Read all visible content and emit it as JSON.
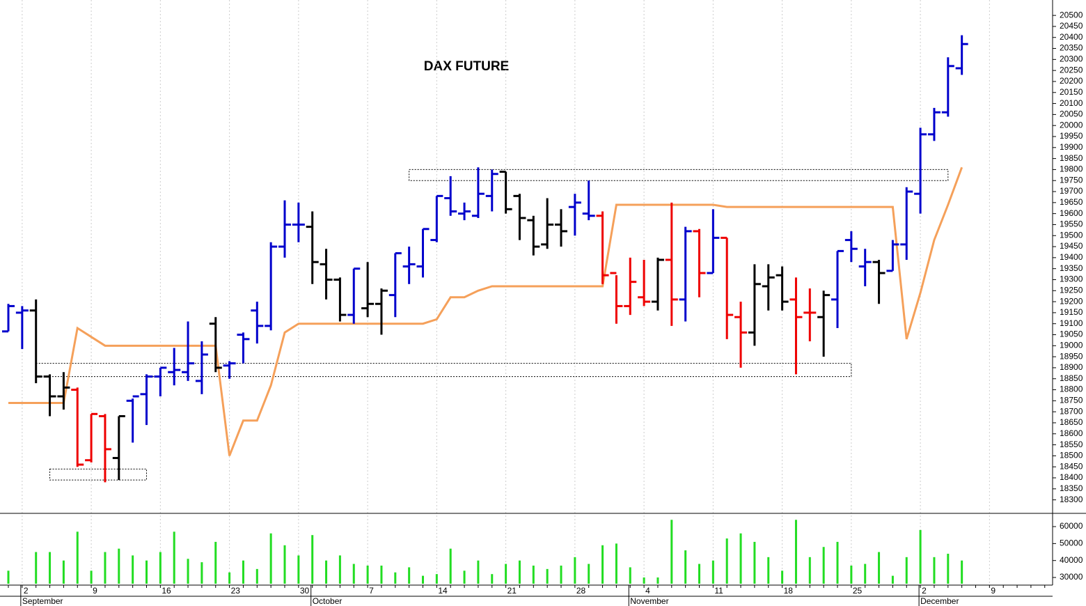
{
  "chart_data": {
    "type": "ohlc",
    "title": "DAX FUTURE",
    "categories": [
      null,
      "2",
      null,
      null,
      null,
      null,
      "9",
      null,
      null,
      null,
      null,
      "16",
      null,
      null,
      null,
      null,
      "23",
      null,
      null,
      null,
      null,
      "30",
      null,
      null,
      null,
      null,
      "7",
      null,
      null,
      null,
      null,
      "14",
      null,
      null,
      null,
      null,
      "21",
      null,
      null,
      null,
      null,
      "28",
      null,
      null,
      null,
      null,
      "4",
      null,
      null,
      null,
      null,
      "11",
      null,
      null,
      null,
      null,
      "18",
      null,
      null,
      null,
      null,
      "25",
      null,
      null,
      null,
      null,
      "2",
      null,
      null,
      null,
      null,
      "9",
      null,
      null,
      null,
      null
    ],
    "months": [
      {
        "index": 1,
        "label": "September"
      },
      {
        "index": 22,
        "label": "October"
      },
      {
        "index": 45,
        "label": "November"
      },
      {
        "index": 66,
        "label": "December"
      }
    ],
    "open": [
      19065,
      19150,
      19160,
      18860,
      18770,
      18800,
      18480,
      18680,
      18490,
      18750,
      18780,
      18860,
      18880,
      18880,
      18840,
      19100,
      18910,
      19050,
      19160,
      19090,
      19450,
      19550,
      19540,
      19370,
      19300,
      19140,
      19170,
      19190,
      19230,
      19360,
      19360,
      19480,
      19670,
      19600,
      19590,
      19680,
      19790,
      19680,
      19570,
      19460,
      19550,
      19630,
      19600,
      19590,
      19330,
      19180,
      19220,
      19200,
      19390,
      19210,
      19520,
      19330,
      19490,
      19130,
      19060,
      19270,
      19320,
      19210,
      19150,
      19130,
      19210,
      19480,
      19360,
      19380,
      19340,
      19460,
      19690,
      19960,
      20060,
      20260,
      null,
      null,
      null,
      null,
      null,
      null
    ],
    "high": [
      19190,
      19180,
      19210,
      18870,
      18880,
      18810,
      18690,
      18690,
      18680,
      18760,
      18870,
      18900,
      18990,
      19110,
      19020,
      19130,
      18930,
      19060,
      19200,
      19470,
      19660,
      19650,
      19610,
      19440,
      19310,
      19350,
      19380,
      19260,
      19420,
      19450,
      19530,
      19680,
      19770,
      19650,
      19810,
      19800,
      19790,
      19690,
      19590,
      19670,
      19620,
      19690,
      19750,
      19610,
      19320,
      19400,
      19390,
      19400,
      19650,
      19540,
      19530,
      19620,
      19490,
      19200,
      19370,
      19370,
      19360,
      19310,
      19260,
      19250,
      19430,
      19520,
      19440,
      19390,
      19480,
      19720,
      19990,
      20080,
      20310,
      20410,
      null,
      null,
      null,
      null,
      null,
      null
    ],
    "low": [
      19065,
      18985,
      18830,
      18680,
      18710,
      18450,
      18470,
      18380,
      18390,
      18560,
      18640,
      18770,
      18820,
      18840,
      18780,
      18880,
      18850,
      18920,
      19010,
      19070,
      19400,
      19470,
      19280,
      19210,
      19110,
      19100,
      19130,
      19050,
      19130,
      19280,
      19310,
      19470,
      19590,
      19570,
      19580,
      19610,
      19600,
      19480,
      19410,
      19440,
      19450,
      19500,
      19570,
      19280,
      19100,
      19140,
      19180,
      19160,
      19090,
      19110,
      19220,
      19330,
      19030,
      18900,
      19000,
      19160,
      19160,
      18870,
      19020,
      18950,
      19080,
      19380,
      19270,
      19190,
      19340,
      19390,
      19600,
      19930,
      20040,
      20230,
      null,
      null,
      null,
      null,
      null,
      null
    ],
    "close": [
      19180,
      19160,
      18860,
      18770,
      18810,
      18460,
      18690,
      18530,
      18680,
      18770,
      18860,
      18900,
      18890,
      18920,
      18960,
      18900,
      18920,
      19030,
      19090,
      19450,
      19550,
      19550,
      19380,
      19300,
      19140,
      19350,
      19190,
      19250,
      19420,
      19370,
      19530,
      19680,
      19610,
      19610,
      19690,
      19780,
      19620,
      19580,
      19450,
      19550,
      19520,
      19650,
      19590,
      19320,
      19180,
      19290,
      19200,
      19390,
      19210,
      19520,
      19330,
      19490,
      19140,
      19060,
      19280,
      19310,
      19200,
      19130,
      19150,
      19230,
      19430,
      19440,
      19380,
      19330,
      19460,
      19700,
      19960,
      20060,
      20270,
      20370,
      null,
      null,
      null,
      null,
      null,
      null
    ],
    "bar_colors": [
      "#0000cc",
      "#0000cc",
      "#000000",
      "#000000",
      "#000000",
      "#ee0000",
      "#ee0000",
      "#ee0000",
      "#000000",
      "#0000cc",
      "#0000cc",
      "#0000cc",
      "#0000cc",
      "#0000cc",
      "#0000cc",
      "#000000",
      "#0000cc",
      "#0000cc",
      "#0000cc",
      "#0000cc",
      "#0000cc",
      "#0000cc",
      "#000000",
      "#000000",
      "#000000",
      "#0000cc",
      "#000000",
      "#000000",
      "#0000cc",
      "#0000cc",
      "#0000cc",
      "#0000cc",
      "#0000cc",
      "#0000cc",
      "#0000cc",
      "#0000cc",
      "#000000",
      "#000000",
      "#000000",
      "#000000",
      "#000000",
      "#0000cc",
      "#0000cc",
      "#ee0000",
      "#ee0000",
      "#ee0000",
      "#ee0000",
      "#000000",
      "#ee0000",
      "#0000cc",
      "#ee0000",
      "#0000cc",
      "#ee0000",
      "#ee0000",
      "#000000",
      "#000000",
      "#000000",
      "#ee0000",
      "#ee0000",
      "#000000",
      "#0000cc",
      "#0000cc",
      "#0000cc",
      "#000000",
      "#0000cc",
      "#0000cc",
      "#0000cc",
      "#0000cc",
      "#0000cc",
      "#0000cc",
      null,
      null,
      null,
      null,
      null,
      null
    ],
    "line": {
      "color": "#f5a05a",
      "values": [
        18740,
        18740,
        18740,
        18740,
        18740,
        19080,
        19040,
        19000,
        19000,
        19000,
        19000,
        19000,
        19000,
        19000,
        19000,
        19000,
        18500,
        18660,
        18660,
        18820,
        19060,
        19100,
        19100,
        19100,
        19100,
        19100,
        19100,
        19100,
        19100,
        19100,
        19100,
        19120,
        19220,
        19220,
        19250,
        19270,
        19270,
        19270,
        19270,
        19270,
        19270,
        19270,
        19270,
        19270,
        19640,
        19640,
        19640,
        19640,
        19640,
        19640,
        19640,
        19640,
        19630,
        19630,
        19630,
        19630,
        19630,
        19630,
        19630,
        19630,
        19630,
        19630,
        19630,
        19630,
        19630,
        19030,
        19240,
        19480,
        19640,
        19810,
        null,
        null,
        null,
        null,
        null,
        null
      ]
    },
    "zones": [
      {
        "start": 29,
        "end": 68,
        "low": 19750,
        "high": 19800
      },
      {
        "start": 2,
        "end": 61,
        "low": 18860,
        "high": 18920
      },
      {
        "start": 3,
        "end": 10,
        "low": 18390,
        "high": 18440
      }
    ],
    "ylim": [
      18245,
      20570
    ],
    "yticks": [
      18300,
      18350,
      18400,
      18450,
      18500,
      18550,
      18600,
      18650,
      18700,
      18750,
      18800,
      18850,
      18900,
      18950,
      19000,
      19050,
      19100,
      19150,
      19200,
      19250,
      19300,
      19350,
      19400,
      19450,
      19500,
      19550,
      19600,
      19650,
      19700,
      19750,
      19800,
      19850,
      19900,
      19950,
      20000,
      20050,
      20100,
      20150,
      20200,
      20250,
      20300,
      20350,
      20400,
      20450,
      20500
    ],
    "volume": {
      "color": "#22dd22",
      "ylim": [
        25500,
        67400
      ],
      "yticks": [
        30000,
        40000,
        50000,
        60000
      ],
      "values": [
        34000,
        null,
        45000,
        45000,
        40000,
        57000,
        34000,
        45000,
        47000,
        43000,
        40000,
        45000,
        57000,
        41000,
        39000,
        51000,
        33000,
        40000,
        35000,
        56000,
        49000,
        43000,
        55000,
        40000,
        43000,
        38000,
        37000,
        37000,
        33000,
        36000,
        31000,
        32000,
        47000,
        34000,
        40000,
        32000,
        38000,
        40000,
        37000,
        35000,
        37000,
        42000,
        38000,
        49000,
        50000,
        36000,
        30000,
        30000,
        64000,
        46000,
        38000,
        40000,
        53000,
        56000,
        51000,
        42000,
        34000,
        64000,
        42000,
        48000,
        51000,
        37000,
        38000,
        45000,
        31000,
        42000,
        58000,
        42000,
        44000,
        40000,
        null,
        null,
        null,
        null,
        null,
        null
      ]
    },
    "grid": true
  }
}
